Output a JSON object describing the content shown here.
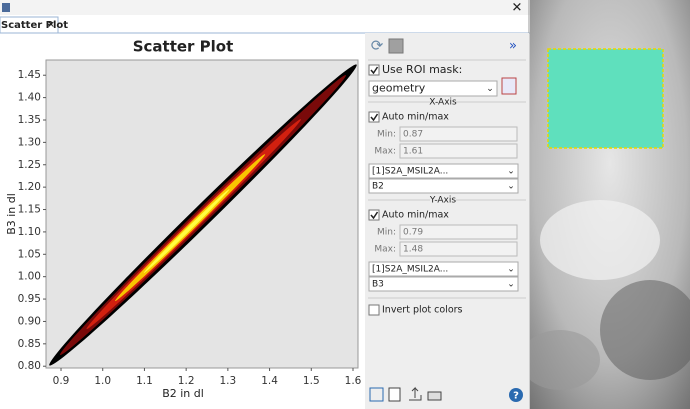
{
  "tab": {
    "title": "Scatter Plot"
  },
  "plot": {
    "type": "scatter-density",
    "title": "Scatter Plot",
    "x_label": "B2 in dl",
    "y_label": "B3 in dl",
    "xlim": [
      0.864,
      1.612
    ],
    "ylim": [
      0.796,
      1.484
    ],
    "xticks": [
      0.9,
      {
        "value": 1.0,
        "label": "1.0"
      },
      1.1,
      1.2,
      1.3,
      1.4,
      1.5,
      1.6
    ],
    "yticks": [
      {
        "value": 0.8,
        "label": "0.80"
      },
      0.85,
      {
        "value": 0.9,
        "label": "0.90"
      },
      0.95,
      {
        "value": 1.0,
        "label": "1.00"
      },
      1.05,
      {
        "value": 1.1,
        "label": "1.10"
      },
      1.15,
      {
        "value": 1.2,
        "label": "1.20"
      },
      1.25,
      {
        "value": 1.3,
        "label": "1.30"
      },
      1.35,
      {
        "value": 1.4,
        "label": "1.40"
      },
      1.45
    ]
  },
  "panel": {
    "collapse": "»",
    "use_roi_mask": {
      "label": "Use ROI mask:",
      "checked": true
    },
    "roi_mask": "geometry",
    "x_axis": {
      "title": "X-Axis",
      "auto_label": "Auto min/max",
      "auto": true,
      "min_label": "Min:",
      "min": 0.87,
      "max_label": "Max:",
      "max": 1.61,
      "product": "[1]S2A_MSIL2A...",
      "band": "B2"
    },
    "y_axis": {
      "title": "Y-Axis",
      "auto_label": "Auto min/max",
      "auto": true,
      "min_label": "Min:",
      "min": 0.79,
      "max_label": "Max:",
      "max": 1.48,
      "product": "[1]S2A_MSIL2A...",
      "band": "B3"
    },
    "invert": {
      "label": "Invert plot colors",
      "checked": false
    }
  }
}
